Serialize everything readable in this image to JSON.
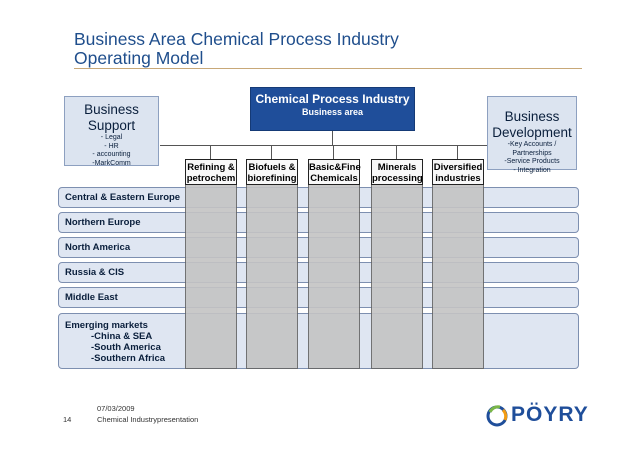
{
  "title": {
    "line1": "Business Area Chemical Process Industry",
    "line2": "Operating Model"
  },
  "central": {
    "title": "Chemical Process Industry",
    "subtitle": "Business area"
  },
  "support": {
    "head1": "Business",
    "head2": "Support",
    "items": [
      "- Legal",
      "- HR",
      "- accounting",
      "-MarkComm"
    ]
  },
  "development": {
    "head1": "Business",
    "head2": "Development",
    "items": [
      "-Key Accounts / Partnerships",
      "-Service Products",
      "- Integration"
    ]
  },
  "columns": [
    {
      "line1": "Refining &",
      "line2": "petrochem"
    },
    {
      "line1": "Biofuels &",
      "line2": "biorefining"
    },
    {
      "line1": "Basic&Fine",
      "line2": "Chemicals"
    },
    {
      "line1": "Minerals",
      "line2": "processing"
    },
    {
      "line1": "Diversified",
      "line2": "industries"
    }
  ],
  "regions": [
    "Central & Eastern Europe",
    "Northern Europe",
    "North America",
    "Russia & CIS",
    "Middle East"
  ],
  "emerging": {
    "head": "Emerging markets",
    "items": [
      "-China & SEA",
      "-South America",
      "-Southern Africa"
    ]
  },
  "footer": {
    "date": "07/03/2009",
    "page": "14",
    "presentation": "Chemical Industrypresentation"
  },
  "logo": {
    "text": "PÖYRY",
    "colors": {
      "blue": "#1f4e9a",
      "green": "#7ab648",
      "orange": "#f39c12"
    }
  }
}
